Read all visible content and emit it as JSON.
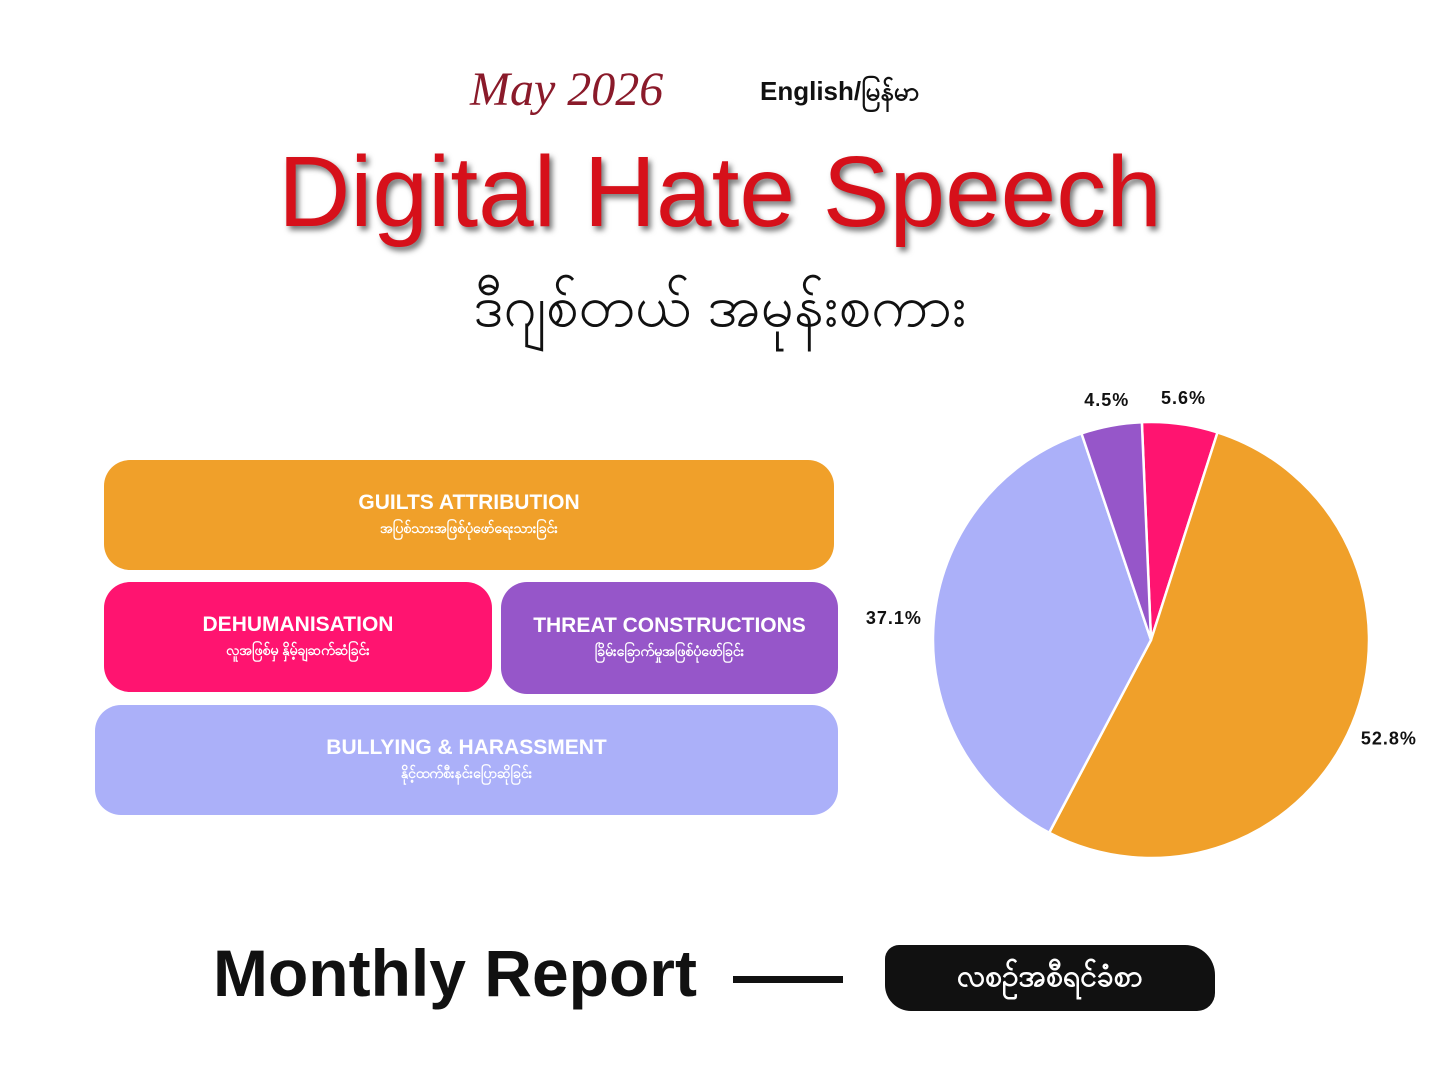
{
  "header": {
    "date": "May 2026",
    "language": "English/မြန်မာ",
    "title": "Digital Hate Speech",
    "subtitle": "ဒီဂျစ်တယ် အမုန်းစကား"
  },
  "chart_data": {
    "type": "pie",
    "categories": [
      "DEHUMANISATION",
      "GUILTS ATTRIBUTION",
      "BULLYING & HARASSMENT",
      "THREAT CONSTRUCTIONS"
    ],
    "subtitles": [
      "လူအဖြစ်မှ နှိမ့်ချဆက်ဆံခြင်း",
      "အပြစ်သားအဖြစ်ပုံဖော်ရေးသားခြင်း",
      "နိုင့်ထက်စီးနင်းပြောဆိုခြင်း",
      "ခြိမ်းခြောက်မှုအဖြစ်ပုံဖော်ခြင်း"
    ],
    "values": [
      5.6,
      52.8,
      37.1,
      4.5
    ],
    "value_labels": [
      "5.6%",
      "52.8%",
      "37.1%",
      "4.5%"
    ],
    "colors": [
      "#ff1470",
      "#f0a02a",
      "#abb0f9",
      "#9656c9"
    ]
  },
  "footer": {
    "label": "Monthly Report",
    "tag": "လစဉ်အစီရင်ခံစာ"
  }
}
